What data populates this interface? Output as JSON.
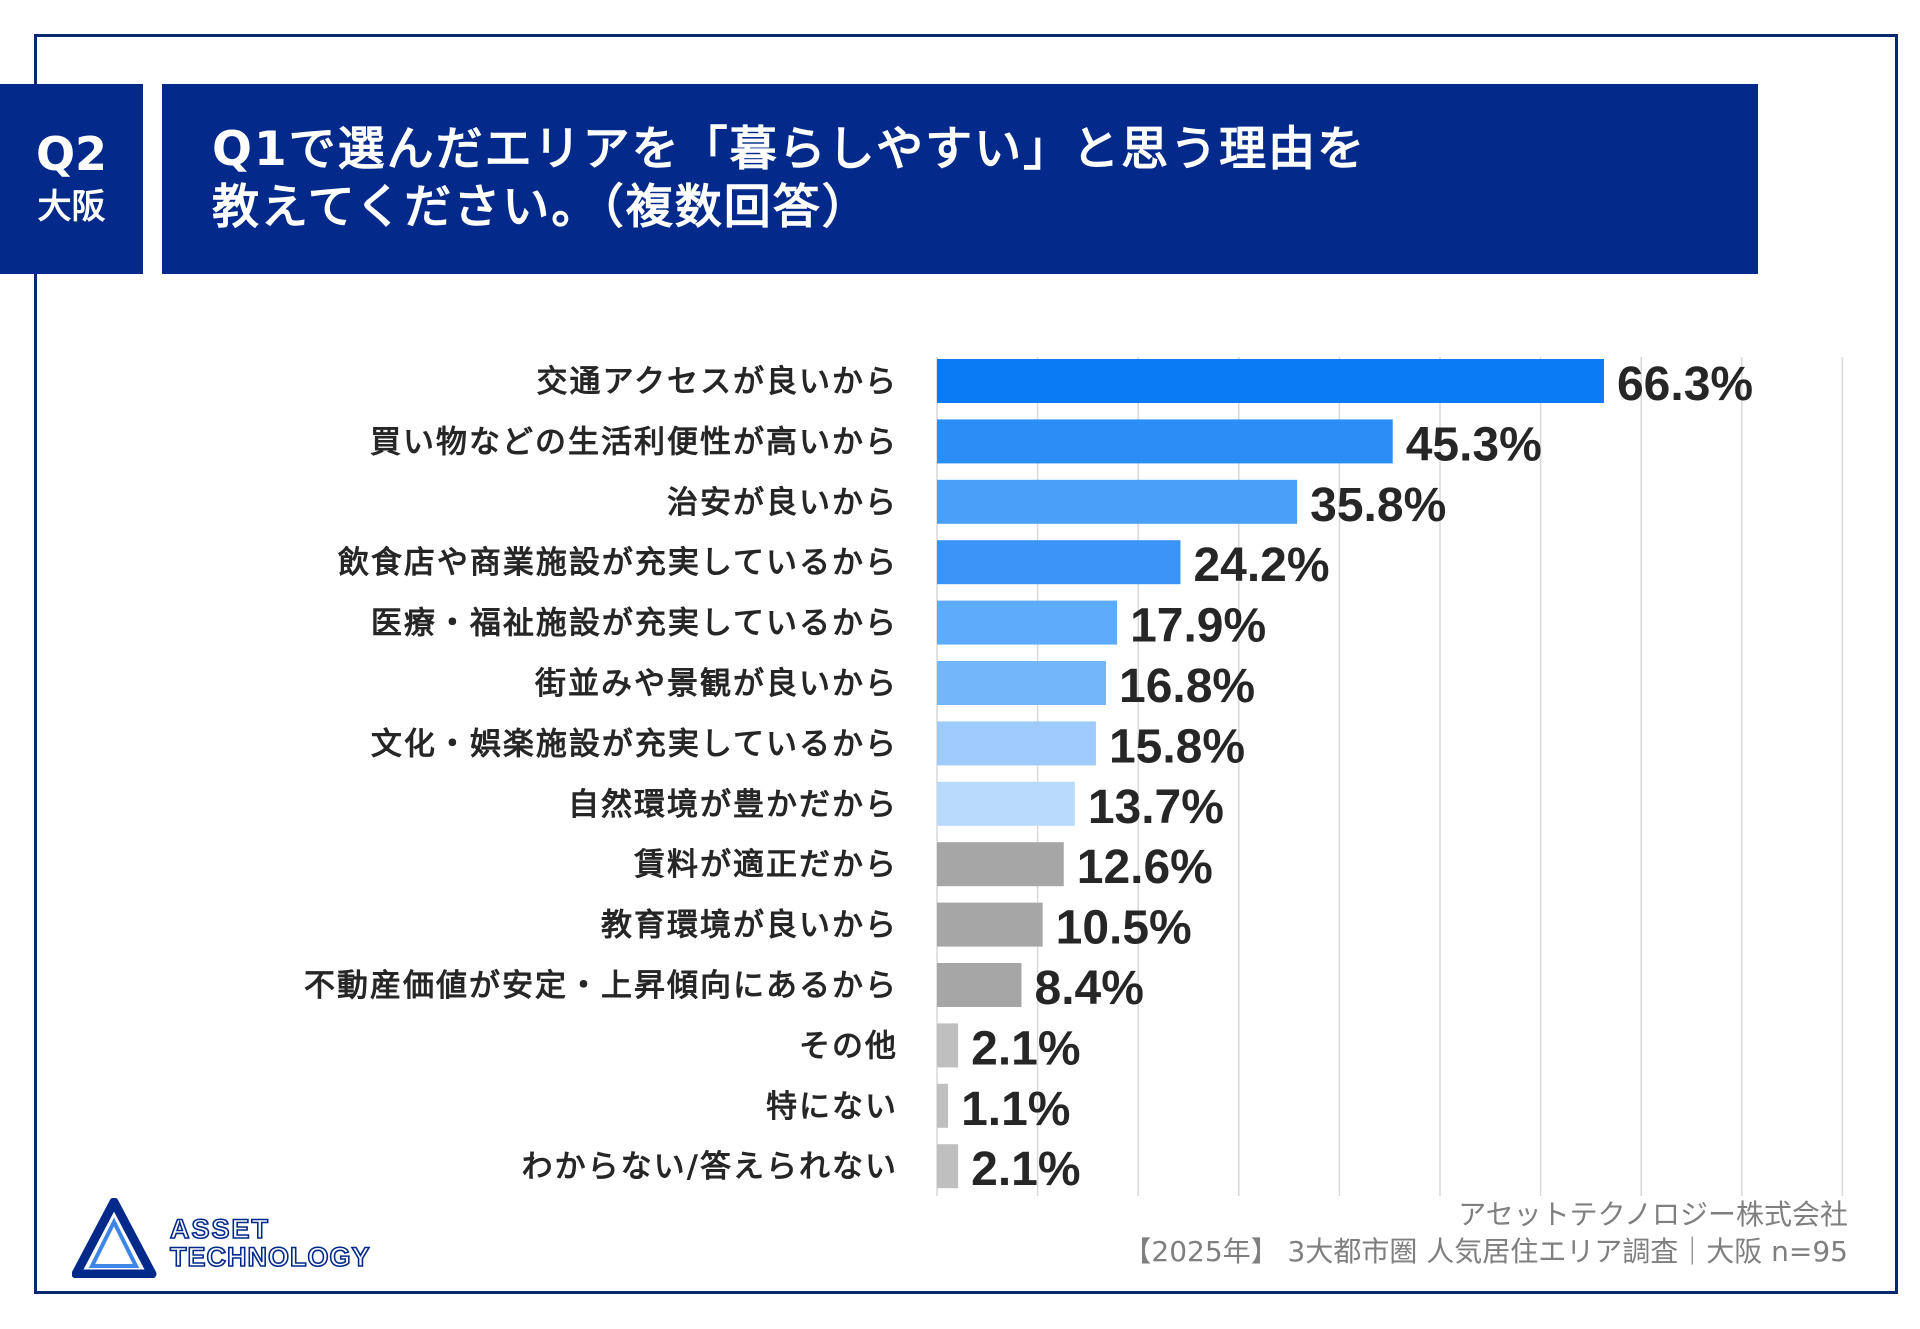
{
  "header": {
    "question_number": "Q2",
    "area": "大阪",
    "title_line1": "Q1で選んだエリアを「暮らしやすい」と思う理由を",
    "title_line2": "教えてください。（複数回答）"
  },
  "chart_data": {
    "type": "bar",
    "orientation": "horizontal",
    "categories": [
      "交通アクセスが良いから",
      "買い物などの生活利便性が高いから",
      "治安が良いから",
      "飲食店や商業施設が充実しているから",
      "医療・福祉施設が充実しているから",
      "街並みや景観が良いから",
      "文化・娯楽施設が充実しているから",
      "自然環境が豊かだから",
      "賃料が適正だから",
      "教育環境が良いから",
      "不動産価値が安定・上昇傾向にあるから",
      "その他",
      "特にない",
      "わからない/答えられない"
    ],
    "values": [
      66.3,
      45.3,
      35.8,
      24.2,
      17.9,
      16.8,
      15.8,
      13.7,
      12.6,
      10.5,
      8.4,
      2.1,
      1.1,
      2.1
    ],
    "value_labels": [
      "66.3%",
      "45.3%",
      "35.8%",
      "24.2%",
      "17.9%",
      "16.8%",
      "15.8%",
      "13.7%",
      "12.6%",
      "10.5%",
      "8.4%",
      "2.1%",
      "1.1%",
      "2.1%"
    ],
    "colors": [
      "#0a7bf5",
      "#2b8df6",
      "#4a9ff8",
      "#3a94f7",
      "#5eabf9",
      "#73b7fa",
      "#9ecbfb",
      "#badafd",
      "#a6a6a6",
      "#a6a6a6",
      "#a6a6a6",
      "#bfbfbf",
      "#bfbfbf",
      "#bfbfbf"
    ],
    "xlim": [
      0,
      100
    ],
    "gridlines": true,
    "grid_step": 10,
    "unit": "%"
  },
  "footer": {
    "company": "アセットテクノロジー株式会社",
    "survey": "【2025年】 3大都市圏 人気居住エリア調査｜大阪 n=95"
  },
  "logo": {
    "line1": "ASSET",
    "line2": "TECHNOLOGY"
  },
  "colors": {
    "navy": "#032a8b",
    "accent_blue": "#0a7bf5",
    "gray": "#a6a6a6"
  }
}
